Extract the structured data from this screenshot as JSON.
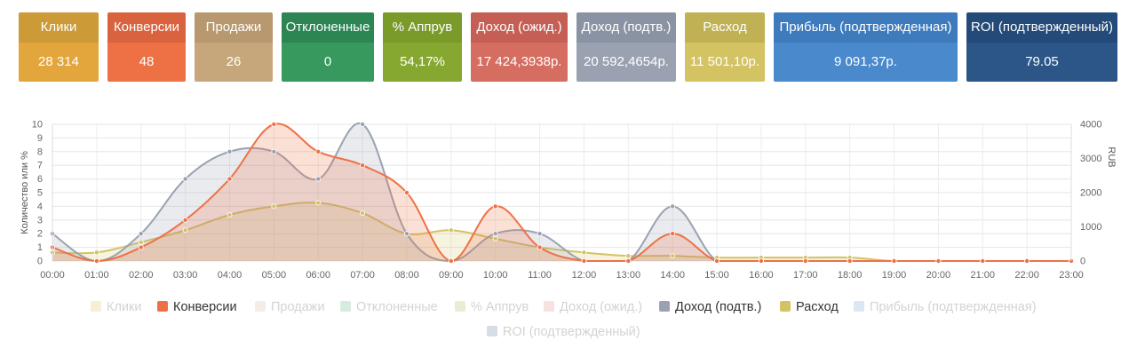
{
  "stats": [
    {
      "label": "Клики",
      "value": "28 314",
      "head": "#cc9a37",
      "body": "#e3a63c"
    },
    {
      "label": "Конверсии",
      "value": "48",
      "head": "#d9633e",
      "body": "#ee7146"
    },
    {
      "label": "Продажи",
      "value": "26",
      "head": "#b7986f",
      "body": "#c6a67b"
    },
    {
      "label": "Отклоненные",
      "value": "0",
      "head": "#2d8554",
      "body": "#38995f"
    },
    {
      "label": "% Аппрув",
      "value": "54,17%",
      "head": "#7a9a2a",
      "body": "#87a830"
    },
    {
      "label": "Доход (ожид.)",
      "value": "17 424,3938р.",
      "head": "#c55f55",
      "body": "#d66d61"
    },
    {
      "label": "Доход (подтв.)",
      "value": "20 592,4654р.",
      "head": "#8a93a3",
      "body": "#9aa2b1"
    },
    {
      "label": "Расход",
      "value": "11 501,10р.",
      "head": "#c0b154",
      "body": "#d3c363"
    },
    {
      "label": "Прибыль (подтвержденная)",
      "value": "9 091,37р.",
      "head": "#3d7bbd",
      "body": "#4a89cc"
    },
    {
      "label": "ROI (подтвержденный)",
      "value": "79.05",
      "head": "#234a78",
      "body": "#2b5687"
    }
  ],
  "chart_data": {
    "type": "area",
    "x": [
      "00:00",
      "01:00",
      "02:00",
      "03:00",
      "04:00",
      "05:00",
      "06:00",
      "07:00",
      "08:00",
      "09:00",
      "10:00",
      "11:00",
      "12:00",
      "13:00",
      "14:00",
      "15:00",
      "16:00",
      "17:00",
      "18:00",
      "19:00",
      "20:00",
      "21:00",
      "22:00",
      "23:00"
    ],
    "ylabel_left": "Количество или %",
    "ylabel_right": "RUB",
    "ylim_left": [
      0,
      10
    ],
    "ylim_right": [
      0,
      4000
    ],
    "yticks_left": [
      "0",
      "1",
      "2",
      "3",
      "4",
      "5",
      "6",
      "7",
      "8",
      "9",
      "10"
    ],
    "yticks_right": [
      "0",
      "1000",
      "2000",
      "3000",
      "4000"
    ],
    "grid": true,
    "legend_position": "bottom",
    "series": [
      {
        "name": "Конверсии",
        "axis": "left",
        "color": "#ee7146",
        "fill": "rgba(238,113,70,0.22)",
        "values": [
          1,
          0,
          1,
          3,
          6,
          10,
          8,
          7,
          5,
          0,
          4,
          1,
          0,
          0,
          2,
          0,
          0,
          0,
          0,
          0,
          0,
          0,
          0,
          0
        ]
      },
      {
        "name": "Доход (подтв.)",
        "axis": "left",
        "color": "#9aa2b1",
        "fill": "rgba(154,162,177,0.22)",
        "values": [
          2,
          0,
          2,
          6,
          8,
          8,
          6,
          10,
          2,
          0,
          2,
          2,
          0,
          0,
          4,
          0,
          0,
          0,
          0,
          0,
          0,
          0,
          0,
          0
        ]
      },
      {
        "name": "Расход",
        "axis": "right",
        "color": "#d3c363",
        "fill": "rgba(211,195,99,0.20)",
        "values": [
          250,
          250,
          550,
          900,
          1350,
          1600,
          1700,
          1400,
          800,
          900,
          650,
          400,
          250,
          150,
          150,
          100,
          100,
          100,
          100,
          0,
          0,
          0,
          0,
          0
        ]
      }
    ]
  },
  "legend": [
    {
      "label": "Клики",
      "color": "#e3a63c",
      "active": false
    },
    {
      "label": "Конверсии",
      "color": "#ee7146",
      "active": true
    },
    {
      "label": "Продажи",
      "color": "#c6a67b",
      "active": false
    },
    {
      "label": "Отклоненные",
      "color": "#38995f",
      "active": false
    },
    {
      "label": "% Аппрув",
      "color": "#87a830",
      "active": false
    },
    {
      "label": "Доход (ожид.)",
      "color": "#d66d61",
      "active": false
    },
    {
      "label": "Доход (подтв.)",
      "color": "#9aa2b1",
      "active": true
    },
    {
      "label": "Расход",
      "color": "#d3c363",
      "active": true
    },
    {
      "label": "Прибыль (подтвержденная)",
      "color": "#4a89cc",
      "active": false
    },
    {
      "label": "ROI (подтвержденный)",
      "color": "#2b5687",
      "active": false
    }
  ]
}
